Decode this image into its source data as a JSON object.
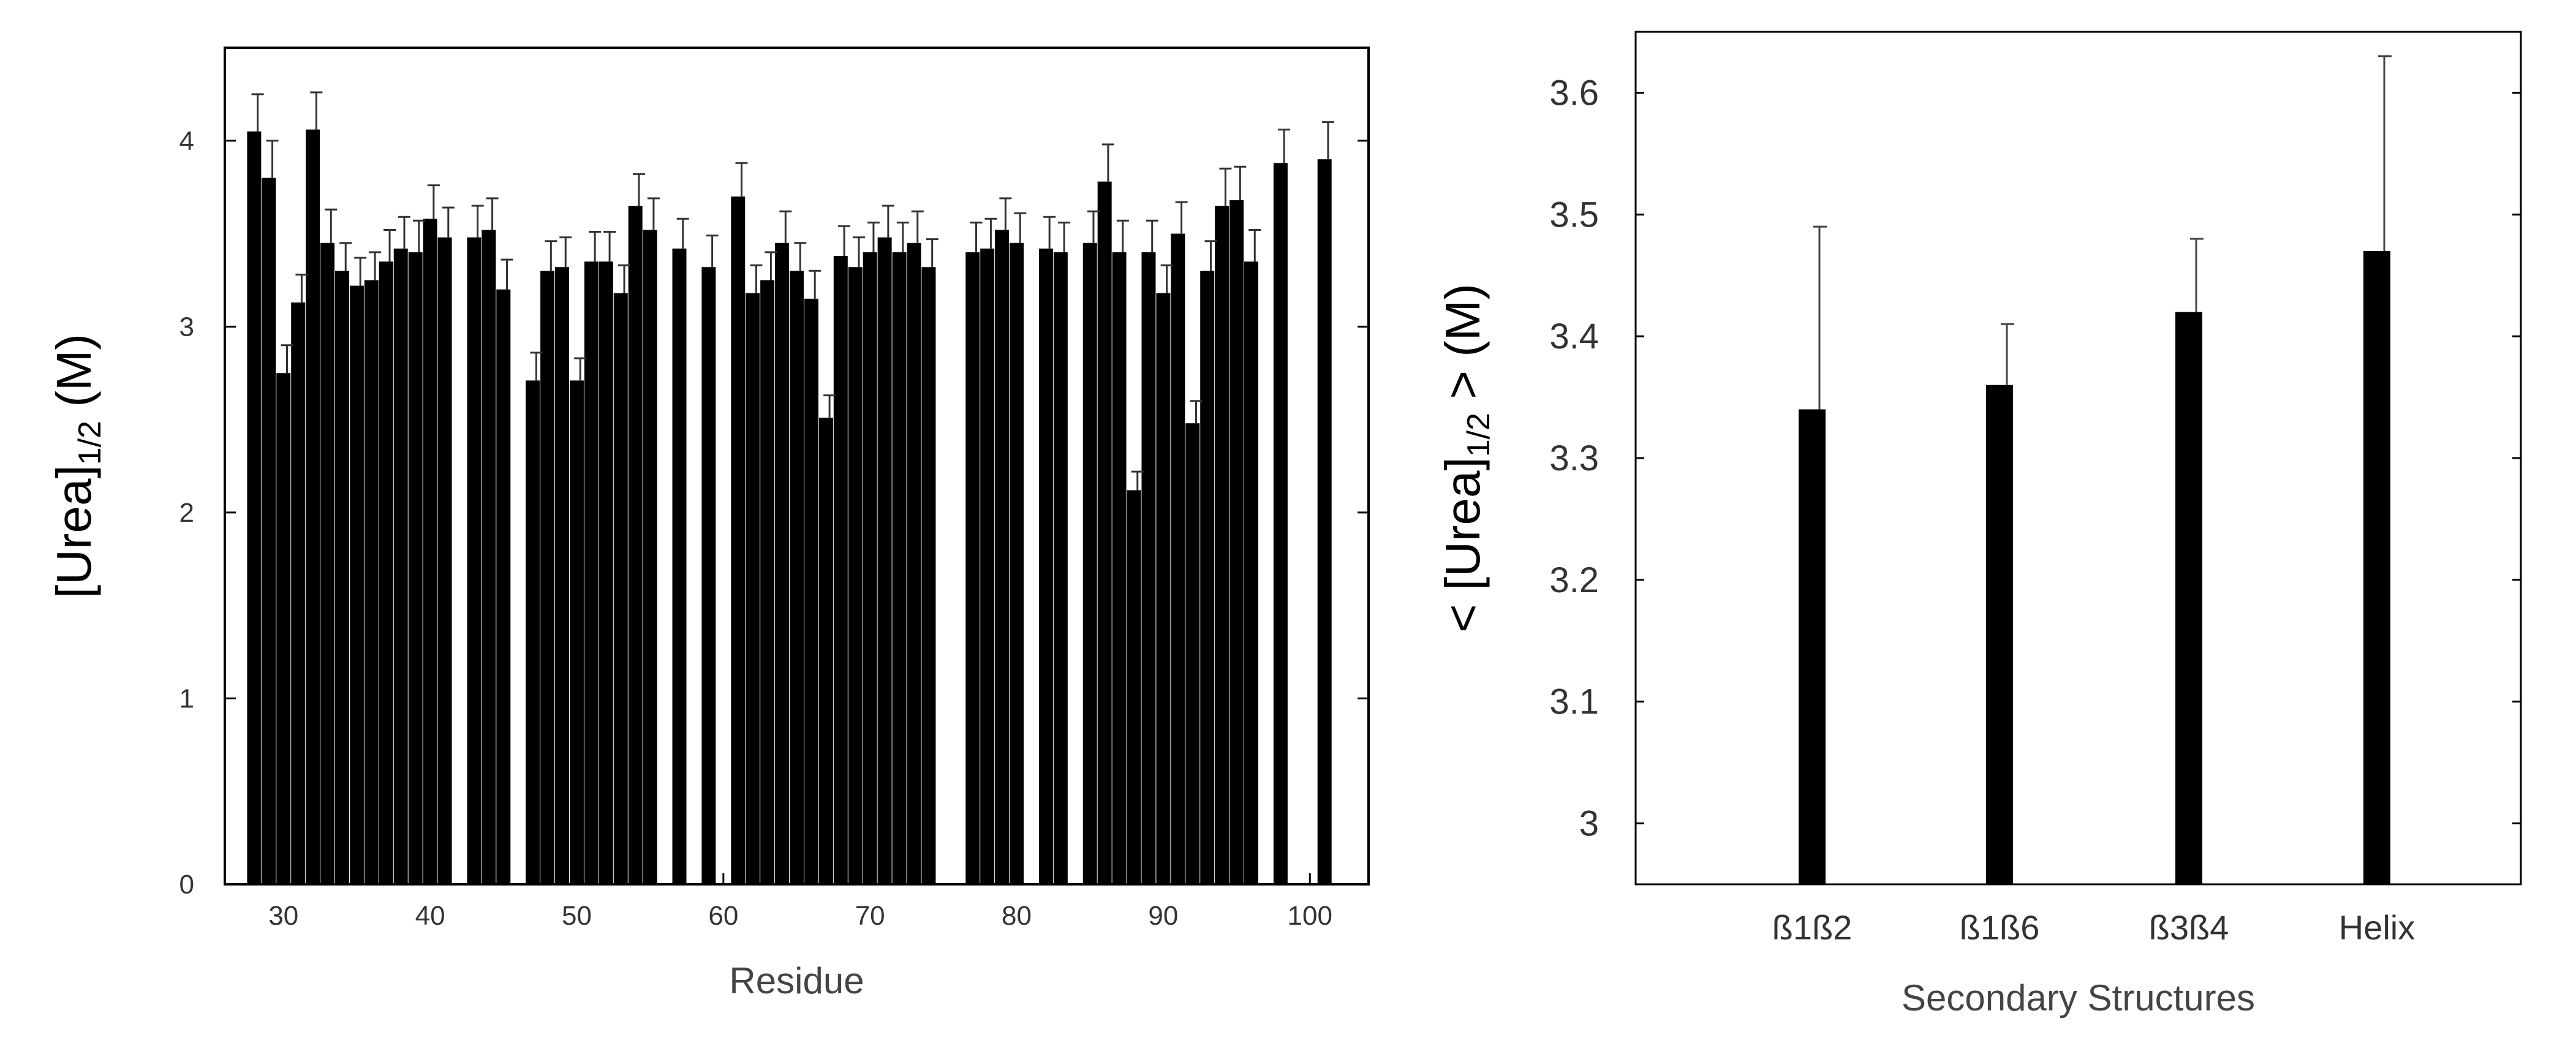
{
  "chart_data": [
    {
      "type": "bar",
      "xlabel": "Residue",
      "ylabel": {
        "main": "[Urea]",
        "sub": "1/2",
        "unit": " (M)"
      },
      "xlim": [
        26,
        104
      ],
      "ylim": [
        0,
        4.5
      ],
      "xticks": [
        30,
        40,
        50,
        60,
        70,
        80,
        90,
        100
      ],
      "yticks": [
        0,
        1,
        2,
        3,
        4
      ],
      "grid": false,
      "bar_color": "#000000",
      "series": [
        {
          "x": [
            28,
            29,
            30,
            31,
            32,
            33,
            34,
            35,
            36,
            37,
            38,
            39,
            40,
            41,
            43,
            44,
            45,
            47,
            48,
            49,
            50,
            51,
            52,
            53,
            54,
            55,
            57,
            59,
            61,
            62,
            63,
            64,
            65,
            66,
            67,
            68,
            69,
            70,
            71,
            72,
            73,
            74,
            77,
            78,
            79,
            80,
            82,
            83,
            85,
            86,
            87,
            88,
            89,
            90,
            91,
            92,
            93,
            94,
            95,
            96,
            98,
            101
          ],
          "values": [
            4.05,
            3.8,
            2.75,
            3.13,
            4.06,
            3.45,
            3.3,
            3.22,
            3.25,
            3.35,
            3.42,
            3.4,
            3.58,
            3.48,
            3.48,
            3.52,
            3.2,
            2.71,
            3.3,
            3.32,
            2.71,
            3.35,
            3.35,
            3.18,
            3.65,
            3.52,
            3.42,
            3.32,
            3.7,
            3.18,
            3.25,
            3.45,
            3.3,
            3.15,
            2.51,
            3.38,
            3.32,
            3.4,
            3.48,
            3.4,
            3.45,
            3.32,
            3.4,
            3.42,
            3.52,
            3.45,
            3.42,
            3.4,
            3.45,
            3.78,
            3.4,
            2.12,
            3.4,
            3.18,
            3.5,
            2.48,
            3.3,
            3.65,
            3.68,
            3.35,
            3.88,
            3.9
          ],
          "errors": [
            0.2,
            0.2,
            0.15,
            0.15,
            0.2,
            0.18,
            0.15,
            0.15,
            0.15,
            0.17,
            0.17,
            0.17,
            0.18,
            0.16,
            0.17,
            0.17,
            0.16,
            0.15,
            0.16,
            0.16,
            0.12,
            0.16,
            0.16,
            0.15,
            0.17,
            0.17,
            0.16,
            0.17,
            0.18,
            0.15,
            0.15,
            0.17,
            0.15,
            0.15,
            0.12,
            0.16,
            0.16,
            0.16,
            0.17,
            0.16,
            0.17,
            0.15,
            0.16,
            0.16,
            0.17,
            0.16,
            0.17,
            0.16,
            0.17,
            0.2,
            0.17,
            0.1,
            0.17,
            0.15,
            0.17,
            0.12,
            0.16,
            0.2,
            0.18,
            0.17,
            0.18,
            0.2
          ]
        }
      ]
    },
    {
      "type": "bar",
      "xlabel": "Secondary Structures",
      "ylabel": {
        "prefix": "< [Urea]",
        "sub": "1/2",
        "suffix": " > (M)"
      },
      "categories": [
        "ß1ß2",
        "ß1ß6",
        "ß3ß4",
        "Helix"
      ],
      "values": [
        3.34,
        3.36,
        3.42,
        3.47
      ],
      "errors": [
        0.15,
        0.05,
        0.06,
        0.16
      ],
      "ylim": [
        2.95,
        3.65
      ],
      "yticks": [
        3,
        3.1,
        3.2,
        3.3,
        3.4,
        3.5,
        3.6
      ],
      "ytick_labels": [
        "3",
        "3.1",
        "3.2",
        "3.3",
        "3.4",
        "3.5",
        "3.6"
      ],
      "grid": false,
      "bar_color": "#000000"
    }
  ]
}
